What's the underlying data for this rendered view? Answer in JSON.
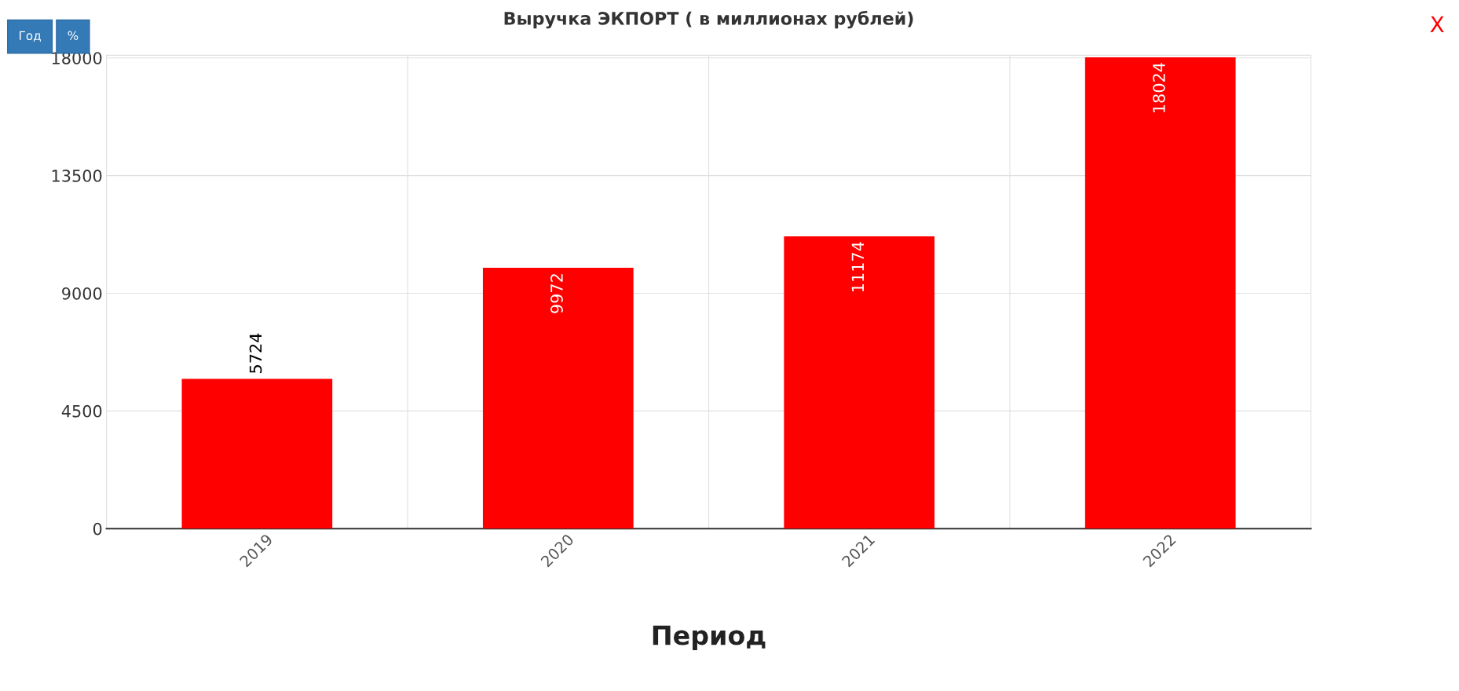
{
  "chart_data": {
    "type": "bar",
    "title": "Выручка ЭКПОРТ ( в миллионах рублей)",
    "xlabel": "Период",
    "categories": [
      "2019",
      "2020",
      "2021",
      "2022"
    ],
    "values": [
      5724,
      9972,
      11174,
      18024
    ],
    "color": "#ff0000",
    "ylim": [
      0,
      18100
    ],
    "yticks": [
      0,
      4500,
      9000,
      13500,
      18000
    ],
    "grid": true,
    "data_labels": true,
    "annotations": [
      "Год",
      "%",
      "X"
    ]
  }
}
